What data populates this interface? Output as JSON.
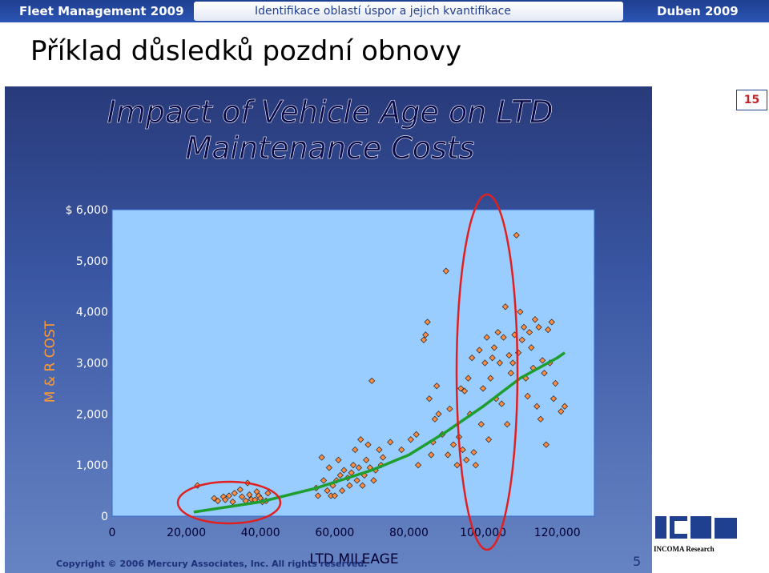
{
  "header": {
    "left": "Fleet Management 2009",
    "middle": "Identifikace oblastí úspor a jejich kvantifikace",
    "right": "Duben 2009"
  },
  "slide_title": "Příklad důsledků pozdní obnovy",
  "page_badge": "15",
  "footer": {
    "copyright": "Copyright © 2006 Mercury Associates, Inc. All rights reserved.",
    "slide_number": "5",
    "logo_text": "INCOMA Research"
  },
  "chart_data": {
    "type": "scatter",
    "title_line1": "Impact of Vehicle Age on LTD",
    "title_line2": "Maintenance Costs",
    "xlabel": "LTD MILEAGE",
    "ylabel": "M & R COST",
    "xlim": [
      0,
      130000
    ],
    "ylim": [
      0,
      6000
    ],
    "x_ticks": [
      "0",
      "20,000",
      "40,000",
      "60,000",
      "80,000",
      "100,000",
      "120,000"
    ],
    "y_ticks": [
      "0",
      "1,000",
      "2,000",
      "3,000",
      "4,000",
      "5,000",
      "$ 6,000"
    ],
    "grid": false,
    "colors": {
      "plot_bg": "#99ccff",
      "marker": "#ff8c42",
      "trend": "#1e9e2e",
      "highlight": "#e02020"
    },
    "points": [
      [
        23000,
        600
      ],
      [
        27500,
        350
      ],
      [
        28500,
        300
      ],
      [
        30000,
        380
      ],
      [
        30500,
        320
      ],
      [
        31500,
        400
      ],
      [
        32500,
        280
      ],
      [
        33000,
        450
      ],
      [
        34500,
        520
      ],
      [
        35000,
        380
      ],
      [
        36000,
        300
      ],
      [
        36500,
        650
      ],
      [
        37000,
        420
      ],
      [
        37500,
        330
      ],
      [
        38500,
        320
      ],
      [
        39000,
        480
      ],
      [
        39500,
        400
      ],
      [
        40000,
        350
      ],
      [
        40500,
        280
      ],
      [
        41500,
        300
      ],
      [
        42000,
        450
      ],
      [
        55000,
        550
      ],
      [
        55500,
        400
      ],
      [
        56500,
        1150
      ],
      [
        57000,
        700
      ],
      [
        58000,
        500
      ],
      [
        58500,
        950
      ],
      [
        59000,
        400
      ],
      [
        59500,
        600
      ],
      [
        60000,
        400
      ],
      [
        60500,
        700
      ],
      [
        61000,
        1100
      ],
      [
        61500,
        800
      ],
      [
        62000,
        500
      ],
      [
        62500,
        900
      ],
      [
        63500,
        750
      ],
      [
        64000,
        600
      ],
      [
        64500,
        850
      ],
      [
        65000,
        1000
      ],
      [
        65500,
        1300
      ],
      [
        66000,
        700
      ],
      [
        66500,
        950
      ],
      [
        67000,
        1500
      ],
      [
        67500,
        600
      ],
      [
        68000,
        800
      ],
      [
        68500,
        1100
      ],
      [
        69000,
        1400
      ],
      [
        69500,
        950
      ],
      [
        70000,
        2650
      ],
      [
        70500,
        700
      ],
      [
        71000,
        900
      ],
      [
        72000,
        1300
      ],
      [
        72500,
        1000
      ],
      [
        73000,
        1150
      ],
      [
        75000,
        1450
      ],
      [
        78000,
        1300
      ],
      [
        80500,
        1500
      ],
      [
        82000,
        1600
      ],
      [
        82500,
        1000
      ],
      [
        84000,
        3450
      ],
      [
        84500,
        3550
      ],
      [
        85000,
        3800
      ],
      [
        85500,
        2300
      ],
      [
        86000,
        1200
      ],
      [
        86500,
        1450
      ],
      [
        87000,
        1900
      ],
      [
        87500,
        2550
      ],
      [
        88000,
        2000
      ],
      [
        89000,
        1600
      ],
      [
        90000,
        4800
      ],
      [
        90500,
        1200
      ],
      [
        91000,
        2100
      ],
      [
        92000,
        1400
      ],
      [
        93000,
        1000
      ],
      [
        93500,
        1550
      ],
      [
        94000,
        2500
      ],
      [
        94500,
        1300
      ],
      [
        95000,
        2450
      ],
      [
        95500,
        1100
      ],
      [
        96000,
        2700
      ],
      [
        96500,
        2000
      ],
      [
        97000,
        3100
      ],
      [
        97500,
        1250
      ],
      [
        98000,
        1000
      ],
      [
        99000,
        3250
      ],
      [
        99500,
        1800
      ],
      [
        100000,
        2500
      ],
      [
        100500,
        3000
      ],
      [
        101000,
        3500
      ],
      [
        101500,
        1500
      ],
      [
        102000,
        2700
      ],
      [
        102500,
        3100
      ],
      [
        103000,
        3300
      ],
      [
        103500,
        2300
      ],
      [
        104000,
        3600
      ],
      [
        104500,
        3000
      ],
      [
        105000,
        2200
      ],
      [
        105500,
        3500
      ],
      [
        106000,
        4100
      ],
      [
        106500,
        1800
      ],
      [
        107000,
        3150
      ],
      [
        107500,
        2800
      ],
      [
        108000,
        3000
      ],
      [
        108500,
        3550
      ],
      [
        109000,
        5500
      ],
      [
        109500,
        3200
      ],
      [
        110000,
        4000
      ],
      [
        110500,
        3450
      ],
      [
        111000,
        3700
      ],
      [
        111500,
        2700
      ],
      [
        112000,
        2350
      ],
      [
        112500,
        3600
      ],
      [
        113000,
        3300
      ],
      [
        113500,
        2900
      ],
      [
        114000,
        3850
      ],
      [
        114500,
        2150
      ],
      [
        115000,
        3700
      ],
      [
        115500,
        1900
      ],
      [
        116000,
        3050
      ],
      [
        116500,
        2800
      ],
      [
        117000,
        1400
      ],
      [
        117500,
        3650
      ],
      [
        118000,
        3000
      ],
      [
        118500,
        3800
      ],
      [
        119000,
        2300
      ],
      [
        119500,
        2600
      ],
      [
        121000,
        2050
      ],
      [
        122000,
        2150
      ]
    ],
    "trend": [
      [
        22000,
        80
      ],
      [
        40000,
        280
      ],
      [
        55000,
        550
      ],
      [
        70000,
        900
      ],
      [
        80000,
        1200
      ],
      [
        90000,
        1650
      ],
      [
        100000,
        2150
      ],
      [
        110000,
        2700
      ],
      [
        120000,
        3100
      ],
      [
        122000,
        3200
      ]
    ]
  }
}
